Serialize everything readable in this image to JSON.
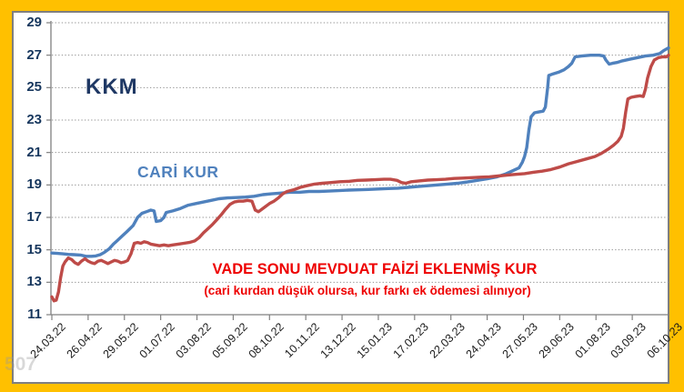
{
  "frame": {
    "background_color": "#FFC000",
    "panel_border_color": "#7f7f7f",
    "panel_background": "#ffffff"
  },
  "watermark": "507",
  "chart_data": {
    "type": "line",
    "title": "VADE SONU MEVDUAT FAİZİ EKLENMİŞ KUR",
    "subtitle": "(cari kurdan düşük olursa, kur farkı ek ödemesi alınıyor)",
    "annotations": {
      "kkm": "KKM",
      "cari_kur": "CARİ KUR",
      "title": "VADE SONU MEVDUAT FAİZİ EKLENMİŞ KUR",
      "subtitle": "(cari kurdan düşük olursa, kur farkı ek ödemesi alınıyor)"
    },
    "xlabel": "",
    "ylabel": "",
    "ylim": [
      11,
      29
    ],
    "y_ticks": [
      29,
      27,
      25,
      23,
      21,
      19,
      17,
      15,
      13,
      11
    ],
    "grid": "dotted-horizontal",
    "legend_position": "none (inline text annotations)",
    "x_unit": "days from 24.03.2022 (tick every 33 days)",
    "x_range_days": [
      0,
      561
    ],
    "x_tick_labels": [
      "24.03.22",
      "26.04.22",
      "29.05.22",
      "01.07.22",
      "03.08.22",
      "05.09.22",
      "08.10.22",
      "10.11.22",
      "13.12.22",
      "15.01.23",
      "17.02.23",
      "22.03.23",
      "24.04.23",
      "27.05.23",
      "29.06.23",
      "01.08.23",
      "03.09.23",
      "06.10.23"
    ],
    "series": [
      {
        "name": "CARİ KUR",
        "color": "#4F81BD",
        "points": [
          [
            0,
            14.8
          ],
          [
            5,
            14.78
          ],
          [
            10,
            14.75
          ],
          [
            15,
            14.72
          ],
          [
            20,
            14.7
          ],
          [
            26,
            14.68
          ],
          [
            31,
            14.6
          ],
          [
            36,
            14.6
          ],
          [
            40,
            14.62
          ],
          [
            44,
            14.7
          ],
          [
            48,
            14.85
          ],
          [
            52,
            15.05
          ],
          [
            56,
            15.35
          ],
          [
            60,
            15.6
          ],
          [
            64,
            15.85
          ],
          [
            68,
            16.1
          ],
          [
            71,
            16.3
          ],
          [
            74,
            16.5
          ],
          [
            78,
            17.0
          ],
          [
            82,
            17.25
          ],
          [
            86,
            17.35
          ],
          [
            90,
            17.45
          ],
          [
            93,
            17.4
          ],
          [
            95,
            16.75
          ],
          [
            99,
            16.8
          ],
          [
            102,
            17.0
          ],
          [
            104,
            17.3
          ],
          [
            110,
            17.4
          ],
          [
            117,
            17.55
          ],
          [
            124,
            17.75
          ],
          [
            131,
            17.85
          ],
          [
            138,
            17.95
          ],
          [
            145,
            18.05
          ],
          [
            152,
            18.15
          ],
          [
            160,
            18.2
          ],
          [
            168,
            18.22
          ],
          [
            176,
            18.25
          ],
          [
            184,
            18.3
          ],
          [
            192,
            18.4
          ],
          [
            200,
            18.45
          ],
          [
            208,
            18.5
          ],
          [
            216,
            18.55
          ],
          [
            225,
            18.55
          ],
          [
            234,
            18.6
          ],
          [
            243,
            18.6
          ],
          [
            252,
            18.62
          ],
          [
            261,
            18.65
          ],
          [
            270,
            18.68
          ],
          [
            279,
            18.7
          ],
          [
            288,
            18.72
          ],
          [
            297,
            18.75
          ],
          [
            306,
            18.78
          ],
          [
            315,
            18.8
          ],
          [
            324,
            18.85
          ],
          [
            333,
            18.9
          ],
          [
            342,
            18.95
          ],
          [
            351,
            19.0
          ],
          [
            360,
            19.05
          ],
          [
            369,
            19.1
          ],
          [
            378,
            19.18
          ],
          [
            387,
            19.28
          ],
          [
            396,
            19.38
          ],
          [
            405,
            19.5
          ],
          [
            413,
            19.68
          ],
          [
            420,
            19.9
          ],
          [
            425,
            20.05
          ],
          [
            428,
            20.4
          ],
          [
            430,
            20.75
          ],
          [
            432,
            21.3
          ],
          [
            434,
            22.4
          ],
          [
            436,
            23.2
          ],
          [
            439,
            23.45
          ],
          [
            443,
            23.5
          ],
          [
            447,
            23.55
          ],
          [
            449,
            23.8
          ],
          [
            451,
            25.0
          ],
          [
            452,
            25.75
          ],
          [
            456,
            25.85
          ],
          [
            461,
            25.95
          ],
          [
            466,
            26.1
          ],
          [
            470,
            26.3
          ],
          [
            473,
            26.5
          ],
          [
            476,
            26.9
          ],
          [
            482,
            26.95
          ],
          [
            490,
            27.0
          ],
          [
            498,
            27.0
          ],
          [
            502,
            26.95
          ],
          [
            504,
            26.7
          ],
          [
            507,
            26.45
          ],
          [
            510,
            26.5
          ],
          [
            514,
            26.55
          ],
          [
            519,
            26.65
          ],
          [
            526,
            26.75
          ],
          [
            533,
            26.85
          ],
          [
            540,
            26.95
          ],
          [
            547,
            27.0
          ],
          [
            553,
            27.1
          ],
          [
            557,
            27.3
          ],
          [
            561,
            27.45
          ]
        ]
      },
      {
        "name": "VADE SONU MEVDUAT FAİZİ EKLENMİŞ KUR",
        "color": "#BE4B48",
        "points": [
          [
            0,
            12.1
          ],
          [
            2,
            11.85
          ],
          [
            4,
            11.9
          ],
          [
            6,
            12.4
          ],
          [
            8,
            13.3
          ],
          [
            10,
            14.0
          ],
          [
            12,
            14.25
          ],
          [
            15,
            14.5
          ],
          [
            18,
            14.4
          ],
          [
            21,
            14.2
          ],
          [
            24,
            14.1
          ],
          [
            27,
            14.3
          ],
          [
            30,
            14.45
          ],
          [
            33,
            14.3
          ],
          [
            36,
            14.2
          ],
          [
            39,
            14.15
          ],
          [
            42,
            14.3
          ],
          [
            45,
            14.35
          ],
          [
            48,
            14.25
          ],
          [
            51,
            14.15
          ],
          [
            54,
            14.25
          ],
          [
            57,
            14.35
          ],
          [
            60,
            14.3
          ],
          [
            63,
            14.2
          ],
          [
            66,
            14.25
          ],
          [
            69,
            14.35
          ],
          [
            72,
            14.75
          ],
          [
            75,
            15.4
          ],
          [
            78,
            15.45
          ],
          [
            81,
            15.4
          ],
          [
            84,
            15.5
          ],
          [
            87,
            15.45
          ],
          [
            90,
            15.35
          ],
          [
            94,
            15.3
          ],
          [
            98,
            15.25
          ],
          [
            102,
            15.3
          ],
          [
            106,
            15.25
          ],
          [
            110,
            15.3
          ],
          [
            115,
            15.35
          ],
          [
            120,
            15.4
          ],
          [
            125,
            15.45
          ],
          [
            130,
            15.55
          ],
          [
            134,
            15.75
          ],
          [
            138,
            16.05
          ],
          [
            142,
            16.3
          ],
          [
            146,
            16.55
          ],
          [
            150,
            16.85
          ],
          [
            154,
            17.15
          ],
          [
            158,
            17.5
          ],
          [
            162,
            17.8
          ],
          [
            166,
            17.95
          ],
          [
            170,
            18.0
          ],
          [
            174,
            18.0
          ],
          [
            178,
            18.05
          ],
          [
            182,
            18.0
          ],
          [
            185,
            17.45
          ],
          [
            188,
            17.35
          ],
          [
            191,
            17.5
          ],
          [
            194,
            17.65
          ],
          [
            198,
            17.85
          ],
          [
            202,
            18.0
          ],
          [
            206,
            18.2
          ],
          [
            210,
            18.45
          ],
          [
            214,
            18.6
          ],
          [
            220,
            18.7
          ],
          [
            226,
            18.85
          ],
          [
            232,
            18.95
          ],
          [
            239,
            19.05
          ],
          [
            246,
            19.1
          ],
          [
            254,
            19.15
          ],
          [
            262,
            19.2
          ],
          [
            270,
            19.22
          ],
          [
            278,
            19.28
          ],
          [
            286,
            19.3
          ],
          [
            294,
            19.32
          ],
          [
            302,
            19.35
          ],
          [
            308,
            19.35
          ],
          [
            314,
            19.28
          ],
          [
            318,
            19.15
          ],
          [
            322,
            19.1
          ],
          [
            327,
            19.2
          ],
          [
            334,
            19.25
          ],
          [
            342,
            19.3
          ],
          [
            350,
            19.32
          ],
          [
            358,
            19.35
          ],
          [
            366,
            19.4
          ],
          [
            374,
            19.42
          ],
          [
            382,
            19.45
          ],
          [
            390,
            19.48
          ],
          [
            398,
            19.5
          ],
          [
            406,
            19.55
          ],
          [
            414,
            19.6
          ],
          [
            422,
            19.65
          ],
          [
            430,
            19.7
          ],
          [
            438,
            19.78
          ],
          [
            446,
            19.85
          ],
          [
            454,
            19.95
          ],
          [
            462,
            20.1
          ],
          [
            470,
            20.3
          ],
          [
            478,
            20.45
          ],
          [
            486,
            20.6
          ],
          [
            494,
            20.75
          ],
          [
            500,
            20.95
          ],
          [
            506,
            21.2
          ],
          [
            511,
            21.45
          ],
          [
            515,
            21.7
          ],
          [
            518,
            22.0
          ],
          [
            520,
            22.5
          ],
          [
            522,
            23.5
          ],
          [
            524,
            24.3
          ],
          [
            527,
            24.4
          ],
          [
            531,
            24.45
          ],
          [
            535,
            24.5
          ],
          [
            538,
            24.45
          ],
          [
            540,
            24.9
          ],
          [
            542,
            25.6
          ],
          [
            545,
            26.3
          ],
          [
            548,
            26.7
          ],
          [
            552,
            26.85
          ],
          [
            556,
            26.9
          ],
          [
            559,
            26.9
          ],
          [
            561,
            27.0
          ]
        ]
      }
    ]
  }
}
